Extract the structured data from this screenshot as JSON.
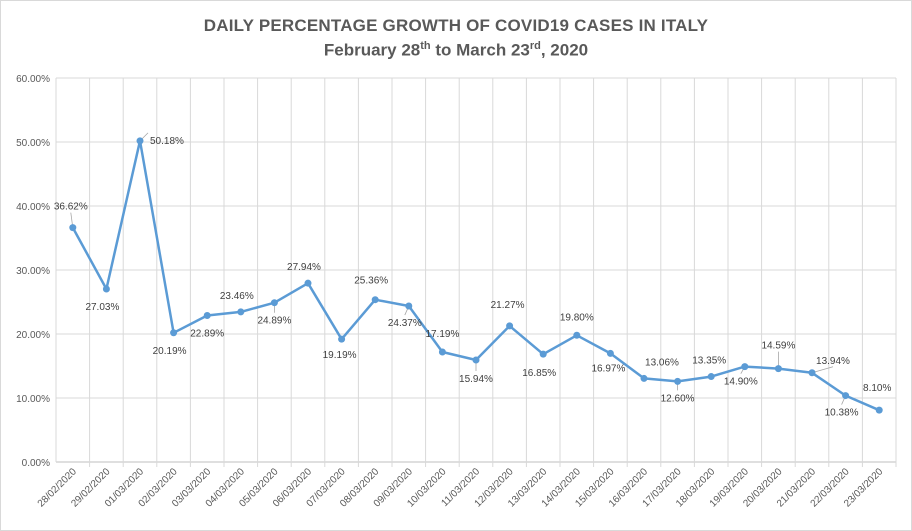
{
  "title_line1": "DAILY PERCENTAGE GROWTH OF COVID19 CASES IN ITALY",
  "title_line2": {
    "part1": "February 28",
    "sup1": "th",
    "part2": " to March 23",
    "sup2": "rd",
    "part3": ", 2020"
  },
  "colors": {
    "line": "#5b9bd5",
    "grid": "#d9d9d9",
    "axis_text": "#595959",
    "label_text": "#404040"
  },
  "chart_data": {
    "type": "line",
    "title": "DAILY PERCENTAGE GROWTH OF COVID19 CASES IN ITALY",
    "subtitle": "February 28th to March 23rd, 2020",
    "xlabel": "",
    "ylabel": "",
    "ylim": [
      0,
      60
    ],
    "yticks": [
      0,
      10,
      20,
      30,
      40,
      50,
      60
    ],
    "ytick_labels": [
      "0.00%",
      "10.00%",
      "20.00%",
      "30.00%",
      "40.00%",
      "50.00%",
      "60.00%"
    ],
    "grid": true,
    "legend": "none",
    "categories": [
      "28/02/2020",
      "29/02/2020",
      "01/03/2020",
      "02/03/2020",
      "03/03/2020",
      "04/03/2020",
      "05/03/2020",
      "06/03/2020",
      "07/03/2020",
      "08/03/2020",
      "09/03/2020",
      "10/03/2020",
      "11/03/2020",
      "12/03/2020",
      "13/03/2020",
      "14/03/2020",
      "15/03/2020",
      "16/03/2020",
      "17/03/2020",
      "18/03/2020",
      "19/03/2020",
      "20/03/2020",
      "21/03/2020",
      "22/03/2020",
      "23/03/2020"
    ],
    "series": [
      {
        "values": [
          36.62,
          27.03,
          50.18,
          20.19,
          22.89,
          23.46,
          24.89,
          27.94,
          19.19,
          25.36,
          24.37,
          17.19,
          15.94,
          21.27,
          16.85,
          19.8,
          16.97,
          13.06,
          12.6,
          13.35,
          14.9,
          14.59,
          13.94,
          10.38,
          8.1
        ],
        "data_labels": [
          "36.62%",
          "27.03%",
          "50.18%",
          "20.19%",
          "22.89%",
          "23.46%",
          "24.89%",
          "27.94%",
          "19.19%",
          "25.36%",
          "24.37%",
          "17.19%",
          "15.94%",
          "21.27%",
          "16.85%",
          "19.80%",
          "16.97%",
          "13.06%",
          "12.60%",
          "13.35%",
          "14.90%",
          "14.59%",
          "13.94%",
          "10.38%",
          "8.10%"
        ]
      }
    ]
  }
}
